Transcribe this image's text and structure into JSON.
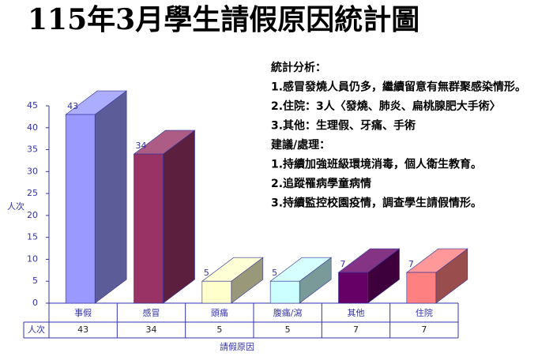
{
  "chart_data": {
    "type": "bar",
    "title": "115年3月學生請假原因統計圖",
    "categories": [
      "事假",
      "感冒",
      "頭痛",
      "腹痛/瀉",
      "其他",
      "住院"
    ],
    "series": [
      {
        "name": "人次",
        "colors": [
          "#9999ff",
          "#993366",
          "#ffffcc",
          "#ccffff",
          "#660066",
          "#ff8080"
        ],
        "values": [
          43,
          34,
          5,
          5,
          7,
          7
        ]
      }
    ],
    "ylim": [
      0,
      45
    ],
    "yticks": [
      0,
      5,
      10,
      15,
      20,
      25,
      30,
      35,
      40,
      45
    ],
    "y_label": "人次",
    "x_label": "請假原因"
  },
  "notes": {
    "lines": [
      "統計分析：",
      "1.感冒發燒人員仍多，繼續留意有無群聚感染情形。",
      "2.住院：3人〈發燒、肺炎、扁桃腺肥大手術〉",
      "3.其他：生理假、牙痛、手術",
      "建議/處理：",
      "1.持續加強班級環境消毒，個人衛生教育。",
      "2.追蹤罹病學童病情",
      "3.持續監控校園疫情，調查學生請假情形。"
    ]
  }
}
